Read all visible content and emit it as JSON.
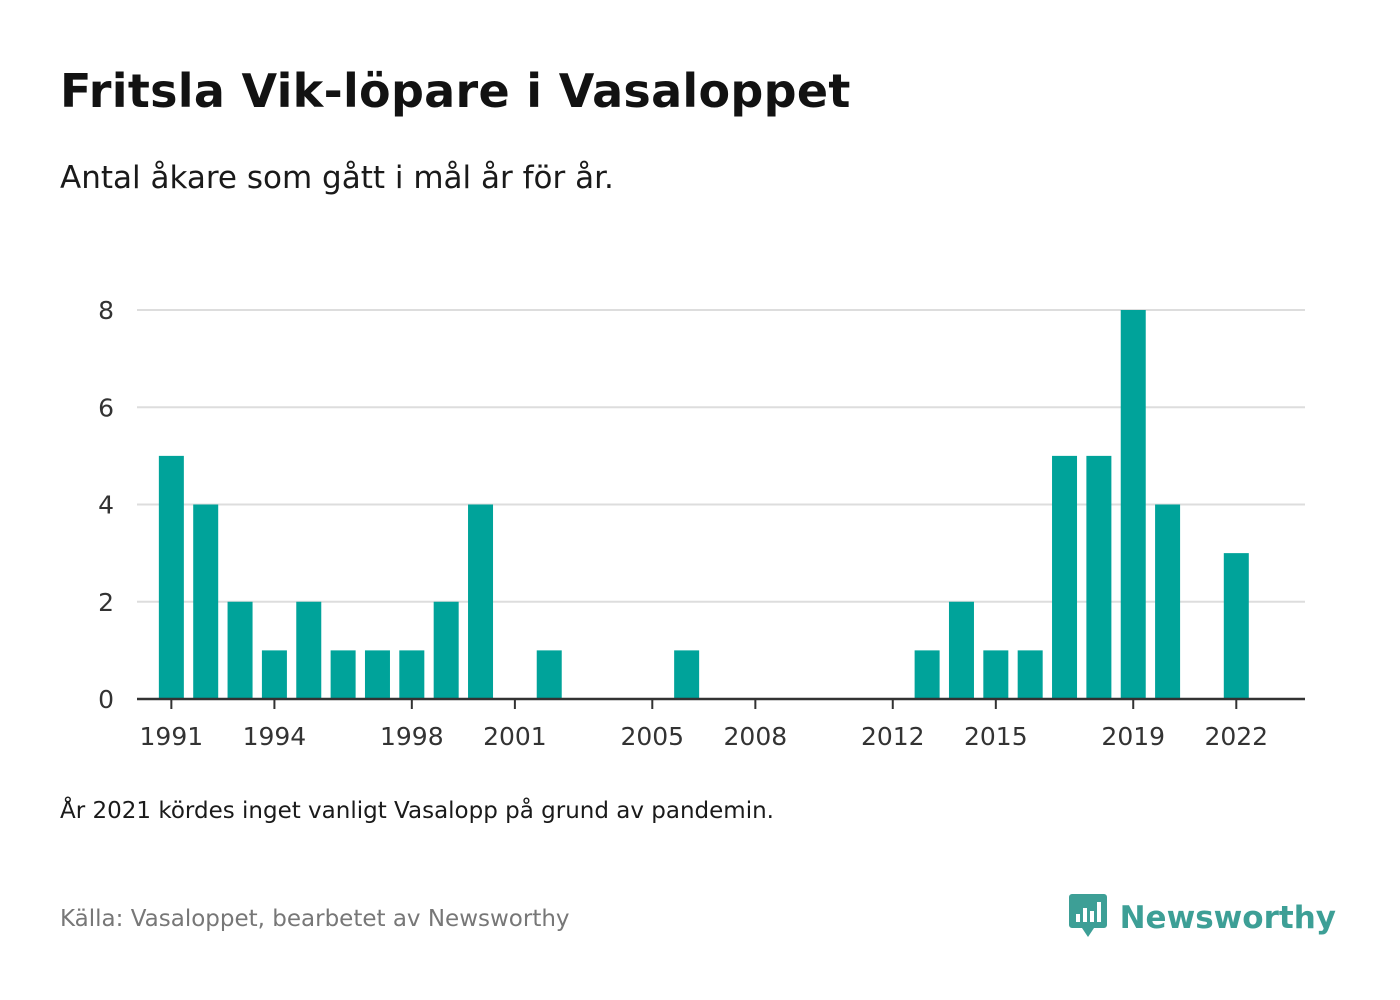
{
  "title": "Fritsla Vik-löpare i Vasaloppet",
  "subtitle": "Antal åkare som gått i mål år för år.",
  "note": "År 2021 kördes inget vanligt Vasalopp på grund av pandemin.",
  "source": "Källa: Vasaloppet, bearbetet av Newsworthy",
  "brand": {
    "name": "Newsworthy",
    "icon": "newsworthy-logo-icon",
    "color": "#3d9f96"
  },
  "chart_data": {
    "type": "bar",
    "title": "Fritsla Vik-löpare i Vasaloppet",
    "subtitle": "Antal åkare som gått i mål år för år.",
    "xlabel": "",
    "ylabel": "",
    "ylim": [
      0,
      8
    ],
    "xlim": [
      1990,
      2024
    ],
    "grid": true,
    "bar_color": "#00a39a",
    "x": [
      1991,
      1992,
      1993,
      1994,
      1995,
      1996,
      1997,
      1998,
      1999,
      2000,
      2002,
      2006,
      2013,
      2014,
      2015,
      2016,
      2017,
      2018,
      2019,
      2020,
      2022
    ],
    "values": [
      5,
      4,
      2,
      1,
      2,
      1,
      1,
      1,
      2,
      4,
      1,
      1,
      1,
      2,
      1,
      1,
      5,
      5,
      8,
      4,
      3
    ],
    "y_ticks": [
      0,
      2,
      4,
      6,
      8
    ],
    "x_ticks": [
      "1991",
      "1994",
      "1998",
      "2001",
      "2005",
      "2008",
      "2012",
      "2015",
      "2019",
      "2022"
    ]
  }
}
